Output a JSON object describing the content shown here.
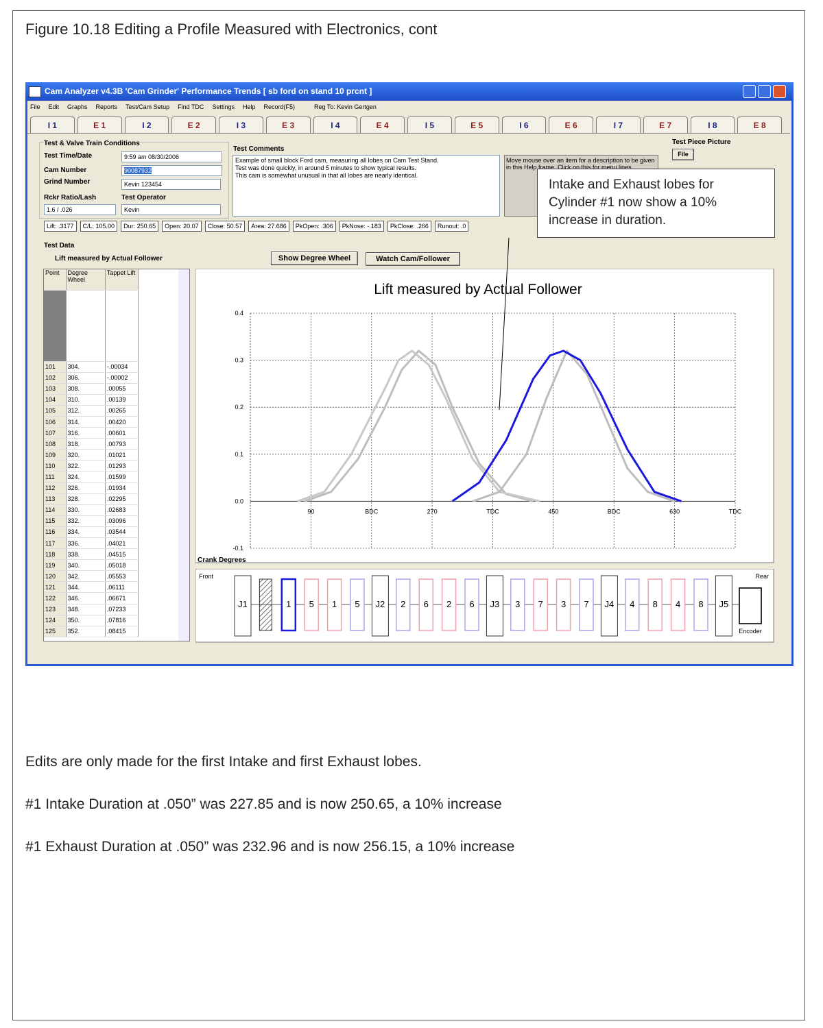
{
  "figure_title": "Figure 10.18 Editing a Profile Measured with Electronics, cont",
  "window": {
    "title": "Cam Analyzer v4.3B 'Cam Grinder'  Performance Trends   [ sb ford on stand 10 prcnt ]",
    "menu": [
      "File",
      "Edit",
      "Graphs",
      "Reports",
      "Test/Cam Setup",
      "Find TDC",
      "Settings",
      "Help",
      "Record(F5)",
      "Reg To: Kevin Gertgen"
    ],
    "tabs": [
      "I 1",
      "E 1",
      "I 2",
      "E 2",
      "I 3",
      "E 3",
      "I 4",
      "E 4",
      "I 5",
      "E 5",
      "I 6",
      "E 6",
      "I 7",
      "E 7",
      "I 8",
      "E 8"
    ],
    "conditions": {
      "heading": "Test & Valve Train Conditions",
      "time_label": "Test Time/Date",
      "time_value": "9:59 am  08/30/2006",
      "cam_label": "Cam Number",
      "cam_value": "90087932",
      "grind_label": "Grind Number",
      "grind_value": "Kevin 123454",
      "ratio_label": "Rckr Ratio/Lash",
      "ratio_value": "1.6  /  .026",
      "operator_label": "Test Operator",
      "operator_value": "Kevin"
    },
    "comments": {
      "heading": "Test Comments",
      "lines": [
        "Example of small block Ford cam, measuring all lobes on Cam Test Stand.",
        "Test was done quickly, in around 5 minutes to show typical results.",
        "This cam is somewhat unusual in that all lobes are nearly identical."
      ]
    },
    "help_text": "Move mouse over an item for a description to be given in this Help frame. Click on this for menu lines",
    "test_piece": {
      "heading": "Test Piece Picture",
      "button": "File"
    },
    "stats": [
      "Lift: .3177",
      "C/L: 105.00",
      "Dur: 250.65",
      "Open: 20.07",
      "Close: 50.57",
      "Area: 27.686",
      "PkOpen: .306",
      "PkNose: -.183",
      "PkClose: .266",
      "Runout: .0"
    ],
    "test_data": {
      "heading": "Test Data",
      "subheading": "Lift measured by Actual Follower",
      "buttons": [
        "Show Degree Wheel",
        "Watch Cam/Follower"
      ],
      "columns": [
        "Point",
        "Degree Wheel",
        "Tappet Lift"
      ],
      "rows": [
        [
          "101",
          "304.",
          "-.00034"
        ],
        [
          "102",
          "306.",
          "-.00002"
        ],
        [
          "103",
          "308.",
          ".00055"
        ],
        [
          "104",
          "310.",
          ".00139"
        ],
        [
          "105",
          "312.",
          ".00265"
        ],
        [
          "106",
          "314.",
          ".00420"
        ],
        [
          "107",
          "316.",
          ".00601"
        ],
        [
          "108",
          "318.",
          ".00793"
        ],
        [
          "109",
          "320.",
          ".01021"
        ],
        [
          "110",
          "322.",
          ".01293"
        ],
        [
          "111",
          "324.",
          ".01599"
        ],
        [
          "112",
          "326.",
          ".01934"
        ],
        [
          "113",
          "328.",
          ".02295"
        ],
        [
          "114",
          "330.",
          ".02683"
        ],
        [
          "115",
          "332.",
          ".03096"
        ],
        [
          "116",
          "334.",
          ".03544"
        ],
        [
          "117",
          "336.",
          ".04021"
        ],
        [
          "118",
          "338.",
          ".04515"
        ],
        [
          "119",
          "340.",
          ".05018"
        ],
        [
          "120",
          "342.",
          ".05553"
        ],
        [
          "121",
          "344.",
          ".06111"
        ],
        [
          "122",
          "346.",
          ".06671"
        ],
        [
          "123",
          "348.",
          ".07233"
        ],
        [
          "124",
          "350.",
          ".07816"
        ],
        [
          "125",
          "352.",
          ".08415"
        ]
      ]
    },
    "lift_chart": {
      "type": "line",
      "title": "Lift measured by Actual Follower",
      "x_label": "Crank Degrees",
      "xlim": [
        0,
        720
      ],
      "xticks": [
        90,
        {
          "value": 180,
          "label": "BDC"
        },
        270,
        {
          "value": 360,
          "label": "TDC"
        },
        450,
        {
          "value": 540,
          "label": "BDC"
        },
        630,
        {
          "value": 720,
          "label": "TDC"
        }
      ],
      "ylim": [
        -0.1,
        0.4
      ],
      "yticks": [
        0.4,
        0.3,
        0.2,
        0.1,
        {
          "value": 0,
          "label": "0.0"
        },
        -0.1
      ],
      "grid": true,
      "series": [
        {
          "color": "#bdbdbd",
          "x": [
            80,
            120,
            160,
            200,
            225,
            250,
            275,
            300,
            340,
            380,
            420
          ],
          "values": [
            0,
            0.02,
            0.09,
            0.2,
            0.28,
            0.32,
            0.29,
            0.2,
            0.08,
            0.015,
            0
          ]
        },
        {
          "color": "#c8c8c8",
          "x": [
            70,
            110,
            150,
            200,
            220,
            240,
            265,
            290,
            330,
            370,
            430
          ],
          "values": [
            0,
            0.02,
            0.1,
            0.24,
            0.3,
            0.32,
            0.29,
            0.22,
            0.09,
            0.02,
            0
          ]
        },
        {
          "color": "#bdbdbd",
          "x": [
            330,
            370,
            410,
            440,
            470,
            500,
            530,
            560,
            590,
            630
          ],
          "values": [
            0,
            0.02,
            0.1,
            0.22,
            0.32,
            0.27,
            0.17,
            0.07,
            0.02,
            0
          ]
        },
        {
          "color": "#1a1adc",
          "x": [
            300,
            340,
            380,
            420,
            445,
            465,
            490,
            520,
            560,
            600,
            640
          ],
          "values": [
            0,
            0.04,
            0.13,
            0.26,
            0.31,
            0.32,
            0.3,
            0.23,
            0.11,
            0.02,
            0
          ]
        }
      ]
    },
    "engine": {
      "front": "Front",
      "rear": "Rear",
      "encoder": "Encoder",
      "items": [
        {
          "label": "J1",
          "kind": "journal"
        },
        {
          "label": null,
          "kind": "gear"
        },
        {
          "label": "1",
          "kind": "lobe",
          "color": "#1a1adc",
          "selected": true
        },
        {
          "label": "5",
          "kind": "lobe",
          "color": "#f0a0a8"
        },
        {
          "label": "1",
          "kind": "lobe",
          "color": "#f0a0a8"
        },
        {
          "label": "5",
          "kind": "lobe",
          "color": "#a8a8f0"
        },
        {
          "label": "J2",
          "kind": "journal"
        },
        {
          "label": "2",
          "kind": "lobe",
          "color": "#a8a8f0"
        },
        {
          "label": "6",
          "kind": "lobe",
          "color": "#f0a0a8"
        },
        {
          "label": "2",
          "kind": "lobe",
          "color": "#f0a0a8"
        },
        {
          "label": "6",
          "kind": "lobe",
          "color": "#a8a8f0"
        },
        {
          "label": "J3",
          "kind": "journal"
        },
        {
          "label": "3",
          "kind": "lobe",
          "color": "#a8a8f0"
        },
        {
          "label": "7",
          "kind": "lobe",
          "color": "#f0a0a8"
        },
        {
          "label": "3",
          "kind": "lobe",
          "color": "#f0a0a8"
        },
        {
          "label": "7",
          "kind": "lobe",
          "color": "#a8a8f0"
        },
        {
          "label": "J4",
          "kind": "journal"
        },
        {
          "label": "4",
          "kind": "lobe",
          "color": "#a8a8f0"
        },
        {
          "label": "8",
          "kind": "lobe",
          "color": "#f0a0a8"
        },
        {
          "label": "4",
          "kind": "lobe",
          "color": "#f0a0a8"
        },
        {
          "label": "8",
          "kind": "lobe",
          "color": "#a8a8f0"
        },
        {
          "label": "J5",
          "kind": "journal"
        }
      ]
    },
    "callout": [
      "Intake and Exhaust lobes for",
      "Cylinder #1 now show a 10%",
      "increase in duration."
    ]
  },
  "body": [
    "Edits are only made for the first Intake and first Exhaust lobes.",
    "#1 Intake Duration at .050” was 227.85 and is now 250.65, a 10% increase",
    "#1 Exhaust Duration at .050” was 232.96 and is now 256.15, a 10% increase"
  ]
}
